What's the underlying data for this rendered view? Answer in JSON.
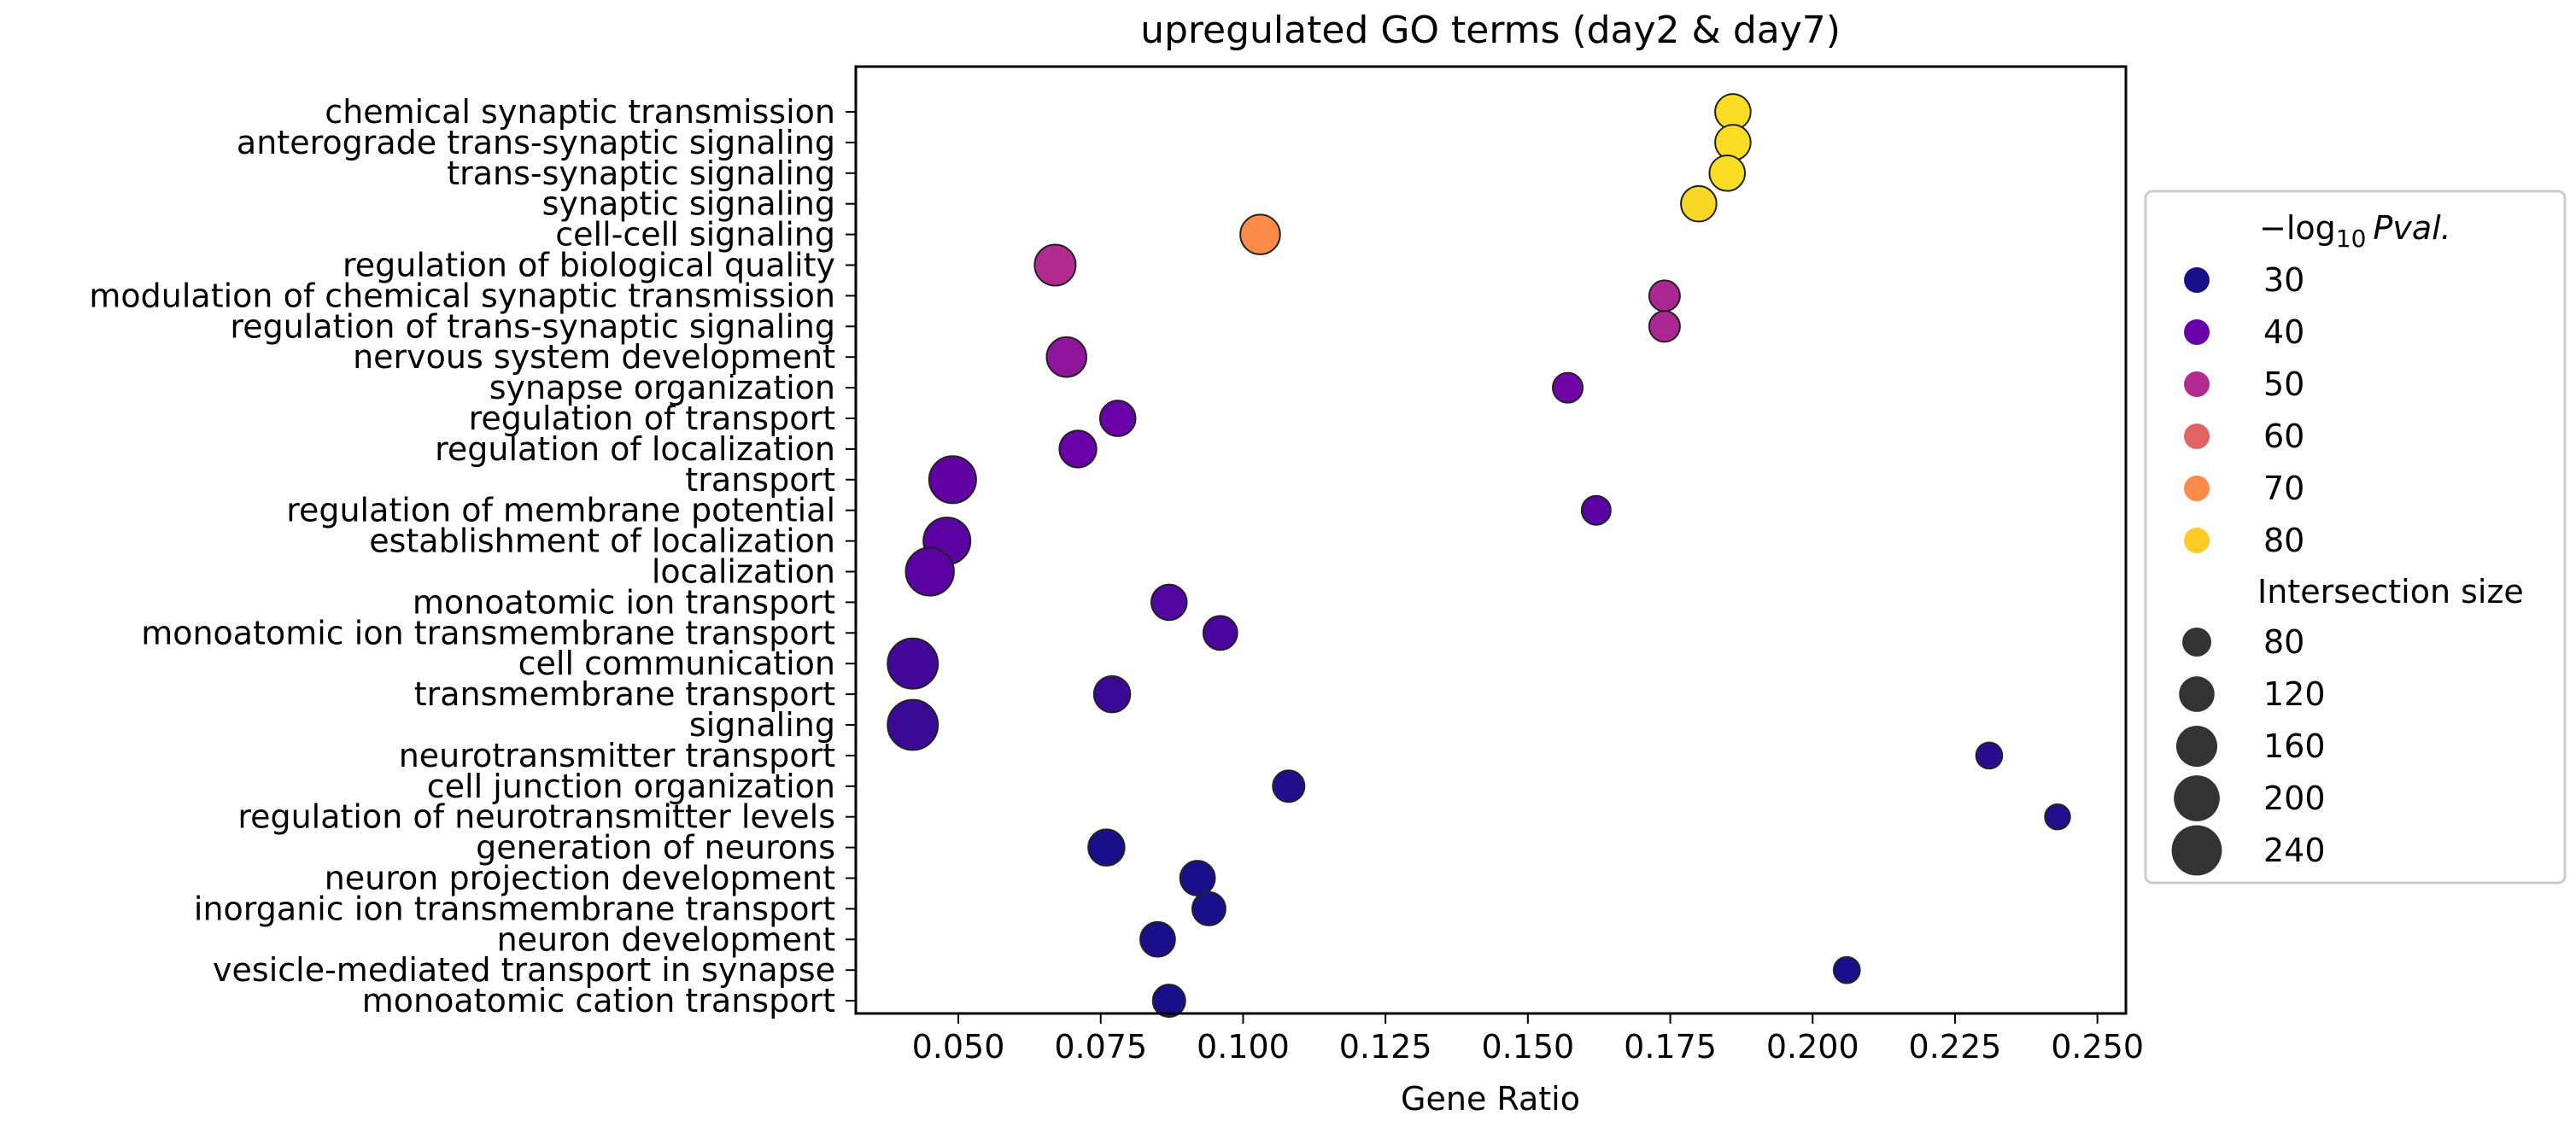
{
  "chart_data": {
    "type": "scatter",
    "title": "upregulated GO terms (day2 & day7)",
    "xlabel": "Gene Ratio",
    "ylabel": "",
    "xlim": [
      0.032,
      0.255
    ],
    "xticks": [
      "0.050",
      "0.075",
      "0.100",
      "0.125",
      "0.150",
      "0.175",
      "0.200",
      "0.225",
      "0.250"
    ],
    "grid": false,
    "legend_position": "right",
    "colormap": "plasma",
    "color_legend": {
      "title_base": "−log",
      "title_sub": "10",
      "title_var": "Pval.",
      "entries": [
        {
          "label": "30",
          "color": "#1a0f8a"
        },
        {
          "label": "40",
          "color": "#6a00a8"
        },
        {
          "label": "50",
          "color": "#b12a90"
        },
        {
          "label": "60",
          "color": "#e16462"
        },
        {
          "label": "70",
          "color": "#fc8b49"
        },
        {
          "label": "80",
          "color": "#fdca26"
        }
      ]
    },
    "size_legend": {
      "title": "Intersection size",
      "entries": [
        {
          "label": "80",
          "value": 80
        },
        {
          "label": "120",
          "value": 120
        },
        {
          "label": "160",
          "value": 160
        },
        {
          "label": "200",
          "value": 200
        },
        {
          "label": "240",
          "value": 240
        }
      ]
    },
    "points": [
      {
        "term": "chemical synaptic transmission",
        "x": 0.186,
        "pval": 84,
        "size": 120
      },
      {
        "term": "anterograde trans-synaptic signaling",
        "x": 0.186,
        "pval": 84,
        "size": 120
      },
      {
        "term": "trans-synaptic signaling",
        "x": 0.185,
        "pval": 84,
        "size": 120
      },
      {
        "term": "synaptic signaling",
        "x": 0.18,
        "pval": 83,
        "size": 120
      },
      {
        "term": "cell-cell signaling",
        "x": 0.103,
        "pval": 70,
        "size": 150
      },
      {
        "term": "regulation of biological quality",
        "x": 0.067,
        "pval": 50,
        "size": 160
      },
      {
        "term": "modulation of chemical synaptic transmission",
        "x": 0.174,
        "pval": 49,
        "size": 90
      },
      {
        "term": "regulation of trans-synaptic signaling",
        "x": 0.174,
        "pval": 49,
        "size": 90
      },
      {
        "term": "nervous system development",
        "x": 0.069,
        "pval": 45,
        "size": 150
      },
      {
        "term": "synapse organization",
        "x": 0.157,
        "pval": 41,
        "size": 85
      },
      {
        "term": "regulation of transport",
        "x": 0.078,
        "pval": 40,
        "size": 120
      },
      {
        "term": "regulation of localization",
        "x": 0.071,
        "pval": 40,
        "size": 130
      },
      {
        "term": "transport",
        "x": 0.049,
        "pval": 39,
        "size": 210
      },
      {
        "term": "regulation of membrane potential",
        "x": 0.162,
        "pval": 38,
        "size": 80
      },
      {
        "term": "establishment of localization",
        "x": 0.048,
        "pval": 38,
        "size": 210
      },
      {
        "term": "localization",
        "x": 0.045,
        "pval": 38,
        "size": 220
      },
      {
        "term": "monoatomic ion transport",
        "x": 0.087,
        "pval": 37,
        "size": 120
      },
      {
        "term": "monoatomic ion transmembrane transport",
        "x": 0.096,
        "pval": 36,
        "size": 110
      },
      {
        "term": "cell communication",
        "x": 0.042,
        "pval": 35,
        "size": 240
      },
      {
        "term": "transmembrane transport",
        "x": 0.077,
        "pval": 34,
        "size": 125
      },
      {
        "term": "signaling",
        "x": 0.042,
        "pval": 34,
        "size": 240
      },
      {
        "term": "neurotransmitter transport",
        "x": 0.231,
        "pval": 32,
        "size": 65
      },
      {
        "term": "cell junction organization",
        "x": 0.108,
        "pval": 31,
        "size": 95
      },
      {
        "term": "regulation of neurotransmitter levels",
        "x": 0.243,
        "pval": 31,
        "size": 60
      },
      {
        "term": "generation of neurons",
        "x": 0.076,
        "pval": 30,
        "size": 125
      },
      {
        "term": "neuron projection development",
        "x": 0.092,
        "pval": 30,
        "size": 115
      },
      {
        "term": "inorganic ion transmembrane transport",
        "x": 0.094,
        "pval": 29,
        "size": 105
      },
      {
        "term": "neuron development",
        "x": 0.085,
        "pval": 29,
        "size": 115
      },
      {
        "term": "vesicle-mediated transport in synapse",
        "x": 0.206,
        "pval": 28,
        "size": 65
      },
      {
        "term": "monoatomic cation transport",
        "x": 0.087,
        "pval": 28,
        "size": 100
      }
    ]
  }
}
